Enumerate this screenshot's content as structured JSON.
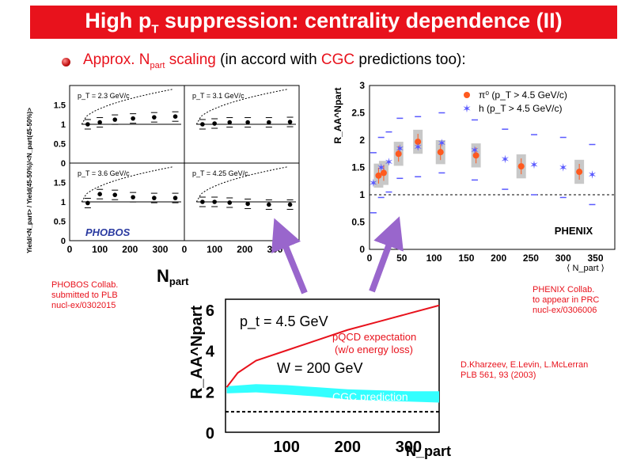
{
  "slide": {
    "title_main": "High p",
    "title_sub": "T",
    "title_rest": " suppression: centrality dependence (II)",
    "bullet_pre": "Approx. N",
    "bullet_sub": "part",
    "bullet_mid": " scaling",
    "bullet_paren_open": " (in accord with ",
    "bullet_cgc": "CGC",
    "bullet_end": " predictions too):",
    "phobos_note": [
      "PHOBOS Collab.",
      "submitted to PLB",
      "nucl-ex/0302015"
    ],
    "phenix_note": [
      "PHENIX Collab.",
      "to appear in PRC",
      "nucl-ex/0306006"
    ],
    "klm_note": [
      "D.Kharzeev, E.Levin, L.McLerran",
      "PLB 561, 93 (2003)"
    ],
    "colors": {
      "title_bg": "#e8121c",
      "accent": "#e8121c",
      "arrow": "#9966cc",
      "cgc_band": "#33ffff",
      "pi0": "#ff5a1f",
      "hadron": "#5a5aff"
    }
  },
  "chart_data": [
    {
      "type": "scatter",
      "name": "PHOBOS",
      "ylabel": "Yield/<N_part> / Yield(45-50%)/<N_part(45-50%)>",
      "xlabel": "N_part",
      "logo": "PHOBOS",
      "xlim": [
        0,
        380
      ],
      "ylim": [
        0,
        2
      ],
      "x_ticks": [
        "0",
        "100",
        "200",
        "300"
      ],
      "y_ticks": [
        "0",
        "0.5",
        "1",
        "1.5"
      ],
      "panels": [
        {
          "label": "p_T = 2.3 GeV/c",
          "x": [
            60,
            100,
            150,
            210,
            280,
            350
          ],
          "y": [
            1.0,
            1.05,
            1.12,
            1.15,
            1.18,
            1.2
          ]
        },
        {
          "label": "p_T = 3.1 GeV/c",
          "x": [
            60,
            100,
            150,
            210,
            280,
            350
          ],
          "y": [
            1.0,
            1.02,
            1.05,
            1.05,
            1.05,
            1.06
          ]
        },
        {
          "label": "p_T = 3.6 GeV/c",
          "x": [
            60,
            100,
            150,
            210,
            280,
            350
          ],
          "y": [
            0.97,
            1.2,
            1.18,
            1.12,
            1.1,
            1.1
          ]
        },
        {
          "label": "p_T = 4.25 GeV/c",
          "x": [
            60,
            100,
            150,
            210,
            280,
            350
          ],
          "y": [
            1.0,
            1.0,
            0.98,
            0.95,
            0.93,
            0.93
          ]
        }
      ]
    },
    {
      "type": "scatter",
      "name": "PHENIX",
      "ylabel": "R_AA^Npart",
      "xlabel": "⟨ N_part ⟩",
      "logo": "PHENIX",
      "xlim": [
        0,
        380
      ],
      "ylim": [
        0,
        3
      ],
      "x_ticks": [
        "0",
        "50",
        "100",
        "150",
        "200",
        "250",
        "300",
        "350"
      ],
      "y_ticks": [
        "0",
        "0.5",
        "1",
        "1.5",
        "2",
        "2.5",
        "3"
      ],
      "series": [
        {
          "name": "π⁰ (p_T > 4.5 GeV/c)",
          "x": [
            14,
            22,
            45,
            75,
            110,
            165,
            235,
            325
          ],
          "y": [
            1.35,
            1.4,
            1.75,
            1.97,
            1.78,
            1.72,
            1.52,
            1.42
          ]
        },
        {
          "name": "h (p_T > 4.5 GeV/c)",
          "x": [
            6,
            18,
            30,
            47,
            75,
            112,
            163,
            210,
            255,
            300,
            345
          ],
          "y": [
            1.22,
            1.5,
            1.6,
            1.85,
            1.88,
            1.95,
            1.82,
            1.65,
            1.55,
            1.5,
            1.37
          ]
        }
      ]
    },
    {
      "type": "line",
      "name": "KLM prediction",
      "ylabel": "R_AA^Npart",
      "xlabel": "N_part",
      "xlim": [
        0,
        350
      ],
      "ylim": [
        0,
        6.5
      ],
      "x_ticks": [
        "100",
        "200",
        "300"
      ],
      "y_ticks": [
        "0",
        "2",
        "4",
        "6"
      ],
      "annotations": [
        "p_t = 4.5 GeV",
        "W = 200 GeV",
        "pQCD expectation",
        "(w/o energy loss)",
        "CGC prediction"
      ],
      "series": [
        {
          "name": "pQCD expectation (w/o energy loss)",
          "x": [
            2,
            20,
            50,
            100,
            150,
            200,
            250,
            300,
            350
          ],
          "y": [
            2.2,
            2.9,
            3.5,
            4.0,
            4.5,
            5.0,
            5.4,
            5.8,
            6.2
          ]
        },
        {
          "name": "CGC prediction upper",
          "x": [
            2,
            50,
            100,
            150,
            200,
            250,
            300,
            350
          ],
          "y": [
            2.25,
            2.35,
            2.3,
            2.2,
            2.1,
            2.05,
            2.0,
            2.0
          ]
        },
        {
          "name": "CGC prediction lower",
          "x": [
            2,
            50,
            100,
            150,
            200,
            250,
            300,
            350
          ],
          "y": [
            1.9,
            1.95,
            1.85,
            1.75,
            1.6,
            1.55,
            1.5,
            1.45
          ]
        },
        {
          "name": "reference line",
          "x": [
            0,
            350
          ],
          "y": [
            1,
            1
          ]
        }
      ]
    }
  ]
}
